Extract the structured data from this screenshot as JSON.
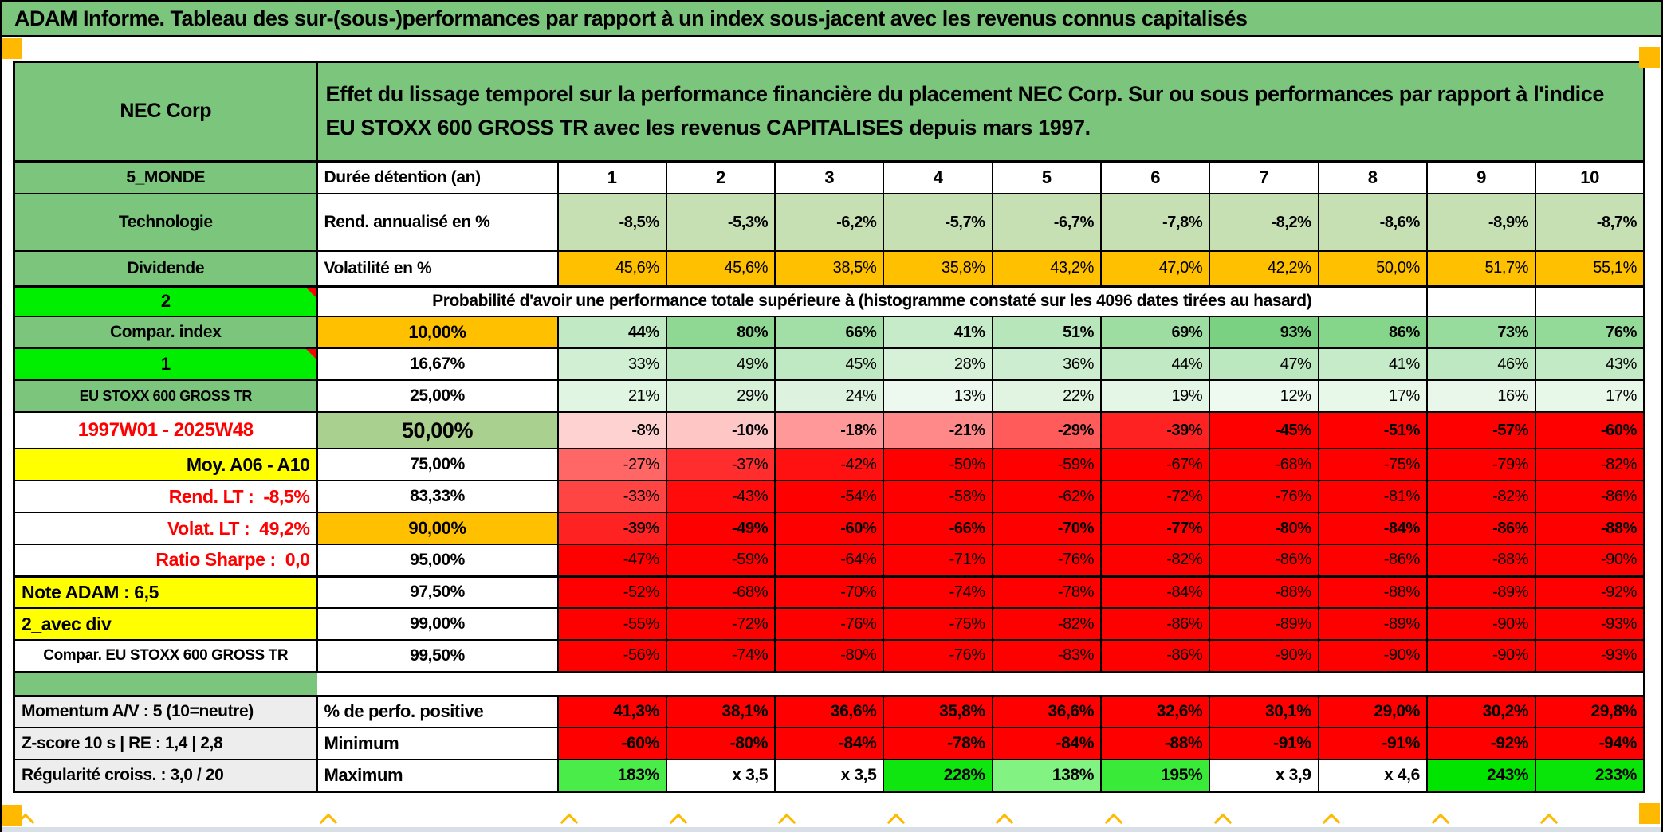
{
  "palette": {
    "header_green": "#7CC57C",
    "bright_green": "#00EF00",
    "light_green": "#C6E0B4",
    "orange": "#FFC000",
    "yellow": "#FFFF00",
    "mid_green": "#A9D08E",
    "solid_red": "#FF0000",
    "red_text": "#FF0000",
    "gray_label": "#EDEDED",
    "pos_scale_end": "#63C96B",
    "neg_scale_end": "#FF0000",
    "max_scale_end": "#00E400",
    "marker_orange": "#FFB900"
  },
  "title": "ADAM Informe. Tableau des sur-(sous-)performances par rapport à un index sous-jacent avec les revenus connus capitalisés",
  "header": {
    "name": "NEC Corp",
    "description": "Effet du lissage temporel sur la performance financière du placement NEC Corp. Sur ou sous performances par rapport à l'indice EU STOXX 600 GROSS TR avec les revenus CAPITALISES depuis mars 1997."
  },
  "columns": [
    "1",
    "2",
    "3",
    "4",
    "5",
    "6",
    "7",
    "8",
    "9",
    "10"
  ],
  "rows": {
    "duration": {
      "left": "5_MONDE",
      "label": "Durée détention (an)"
    },
    "rend": {
      "left": "Technologie",
      "label": "Rend. annualisé en %",
      "values": [
        "-8,5%",
        "-5,3%",
        "-6,2%",
        "-5,7%",
        "-6,7%",
        "-7,8%",
        "-8,2%",
        "-8,6%",
        "-8,9%",
        "-8,7%"
      ]
    },
    "volat": {
      "left": "Dividende",
      "label": "Volatilité en %",
      "values": [
        "45,6%",
        "45,6%",
        "38,5%",
        "35,8%",
        "43,2%",
        "47,0%",
        "42,2%",
        "50,0%",
        "51,7%",
        "55,1%"
      ]
    },
    "prob_header": {
      "left": "2",
      "text": "Probabilité d'avoir une performance totale supérieure à (histogramme constaté sur les 4096 dates tirées au hasard)"
    },
    "prob": [
      {
        "left": "Compar. index",
        "left_style": "green",
        "pct": "10,00%",
        "pct_style": "orange",
        "bold": true,
        "values": [
          "44%",
          "80%",
          "66%",
          "41%",
          "51%",
          "69%",
          "93%",
          "86%",
          "73%",
          "76%"
        ]
      },
      {
        "left": "1",
        "left_style": "bright",
        "pct": "16,67%",
        "pct_style": "white",
        "bold": false,
        "values": [
          "33%",
          "49%",
          "45%",
          "28%",
          "36%",
          "44%",
          "47%",
          "41%",
          "46%",
          "43%"
        ]
      },
      {
        "left": "EU STOXX 600 GROSS TR",
        "left_style": "green-small",
        "pct": "25,00%",
        "pct_style": "white",
        "bold": false,
        "values": [
          "21%",
          "29%",
          "24%",
          "13%",
          "22%",
          "19%",
          "12%",
          "17%",
          "16%",
          "17%"
        ]
      },
      {
        "left": "1997W01 - 2025W48",
        "left_style": "red-center",
        "pct": "50,00%",
        "pct_style": "green50",
        "bold": true,
        "values": [
          "-8%",
          "-10%",
          "-18%",
          "-21%",
          "-29%",
          "-39%",
          "-45%",
          "-51%",
          "-57%",
          "-60%"
        ]
      },
      {
        "left": "Moy. A06 - A10",
        "left_style": "yellow-right",
        "pct": "75,00%",
        "pct_style": "white",
        "bold": false,
        "values": [
          "-27%",
          "-37%",
          "-42%",
          "-50%",
          "-59%",
          "-67%",
          "-68%",
          "-75%",
          "-79%",
          "-82%"
        ]
      },
      {
        "left": "Rend. LT :  -8,5%",
        "left_style": "red-right",
        "pct": "83,33%",
        "pct_style": "white",
        "bold": false,
        "values": [
          "-33%",
          "-43%",
          "-54%",
          "-58%",
          "-62%",
          "-72%",
          "-76%",
          "-81%",
          "-82%",
          "-86%"
        ]
      },
      {
        "left": "Volat. LT :  49,2%",
        "left_style": "red-right",
        "pct": "90,00%",
        "pct_style": "orange",
        "bold": true,
        "values": [
          "-39%",
          "-49%",
          "-60%",
          "-66%",
          "-70%",
          "-77%",
          "-80%",
          "-84%",
          "-86%",
          "-88%"
        ]
      },
      {
        "left": "Ratio Sharpe :  0,0",
        "left_style": "red-right",
        "pct": "95,00%",
        "pct_style": "white",
        "bold": false,
        "thick_bottom": true,
        "values": [
          "-47%",
          "-59%",
          "-64%",
          "-71%",
          "-76%",
          "-82%",
          "-86%",
          "-86%",
          "-88%",
          "-90%"
        ]
      },
      {
        "left": "Note ADAM : 6,5",
        "left_style": "yellow-left",
        "pct": "97,50%",
        "pct_style": "white",
        "bold": false,
        "values": [
          "-52%",
          "-68%",
          "-70%",
          "-74%",
          "-78%",
          "-84%",
          "-88%",
          "-88%",
          "-89%",
          "-92%"
        ]
      },
      {
        "left": "2_avec div",
        "left_style": "yellow-left",
        "pct": "99,00%",
        "pct_style": "white",
        "bold": false,
        "values": [
          "-55%",
          "-72%",
          "-76%",
          "-75%",
          "-82%",
          "-86%",
          "-89%",
          "-89%",
          "-90%",
          "-93%"
        ]
      },
      {
        "left": "Compar. EU STOXX 600 GROSS TR",
        "left_style": "white-center",
        "pct": "99,50%",
        "pct_style": "white",
        "bold": false,
        "thick_bottom": true,
        "values": [
          "-56%",
          "-74%",
          "-80%",
          "-76%",
          "-83%",
          "-86%",
          "-90%",
          "-90%",
          "-90%",
          "-93%"
        ]
      }
    ],
    "bottom": [
      {
        "left": "Momentum A/V : 5 (10=neutre)",
        "label": "% de perfo. positive",
        "kind": "red",
        "values": [
          "41,3%",
          "38,1%",
          "36,6%",
          "35,8%",
          "36,6%",
          "32,6%",
          "30,1%",
          "29,0%",
          "30,2%",
          "29,8%"
        ]
      },
      {
        "left": "Z-score 10 s | RE : 1,4 | 2,8",
        "label": "Minimum",
        "kind": "red",
        "values": [
          "-60%",
          "-80%",
          "-84%",
          "-78%",
          "-84%",
          "-88%",
          "-91%",
          "-91%",
          "-92%",
          "-94%"
        ]
      },
      {
        "left": "Régularité croiss. : 3,0 / 20",
        "label": "Maximum",
        "kind": "max",
        "values": [
          "183%",
          "x 3,5",
          "x 3,5",
          "228%",
          "138%",
          "195%",
          "x 3,9",
          "x 4,6",
          "243%",
          "233%"
        ]
      }
    ]
  }
}
